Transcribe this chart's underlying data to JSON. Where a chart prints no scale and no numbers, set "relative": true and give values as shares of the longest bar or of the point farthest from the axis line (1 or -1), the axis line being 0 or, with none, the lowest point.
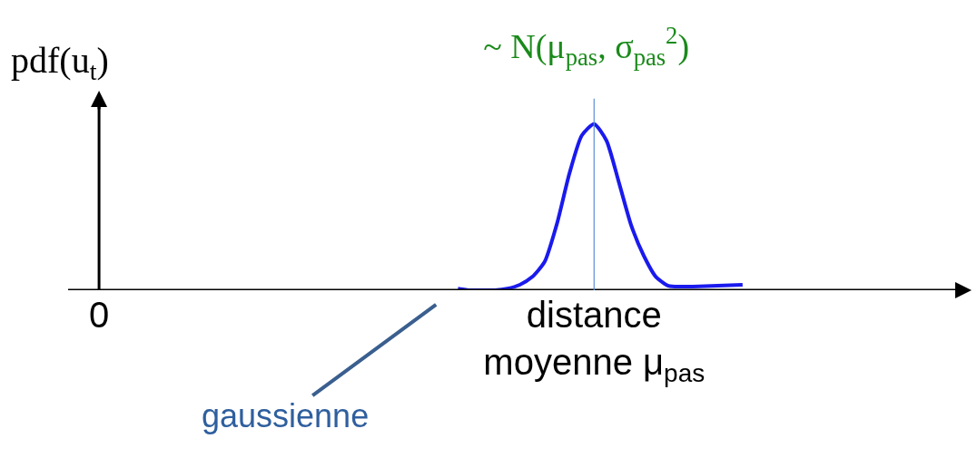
{
  "chart_data": {
    "type": "line",
    "relative": true,
    "title": "~ N(μ$_{pas}$, σ$_{pas}$$^{2}$)",
    "ylabel": "pdf(u$_{t}$)",
    "categories": [
      null,
      null,
      "0",
      null,
      null,
      null,
      null,
      null,
      null,
      null,
      null,
      null,
      null,
      null,
      null,
      null,
      null,
      null,
      null,
      null,
      null,
      null,
      null,
      null,
      null,
      null,
      null,
      null,
      null,
      null,
      null,
      null,
      null,
      null,
      null,
      null,
      null,
      null,
      null,
      null,
      null,
      null,
      "distance\nmoyenne μ$_{pas}$",
      null,
      null,
      null,
      null,
      null,
      null,
      null,
      null,
      null,
      null,
      null,
      null,
      null,
      null,
      null,
      null,
      null,
      null,
      null,
      null,
      null,
      null,
      null,
      null,
      null,
      null,
      null,
      null,
      null,
      null
    ],
    "series": [
      {
        "color": "#1a1aee",
        "values": [
          null,
          null,
          null,
          null,
          null,
          null,
          null,
          null,
          null,
          null,
          null,
          null,
          null,
          null,
          null,
          null,
          null,
          null,
          null,
          null,
          null,
          null,
          null,
          null,
          null,
          null,
          null,
          null,
          null,
          null,
          null,
          0.01,
          0,
          0,
          0,
          0.01,
          0.033,
          0.08,
          0.17,
          0.4,
          0.7,
          0.93,
          1.0,
          0.9,
          0.65,
          0.39,
          0.21,
          0.08,
          0.027,
          0.022,
          0.022,
          0.024,
          0.027,
          0.03,
          0.033,
          null,
          null,
          null,
          null,
          null,
          null,
          null,
          null,
          null,
          null,
          null,
          null,
          null,
          null,
          null,
          null,
          null,
          null
        ]
      }
    ],
    "ref_lines": [
      {
        "axis": "x",
        "value": "distance\nmoyenne μ$_{pas}$",
        "color": "#5b8fd6"
      }
    ],
    "annotations": [
      "gaussienne"
    ],
    "grid": false,
    "marker": "none",
    "line_style": "solid"
  }
}
